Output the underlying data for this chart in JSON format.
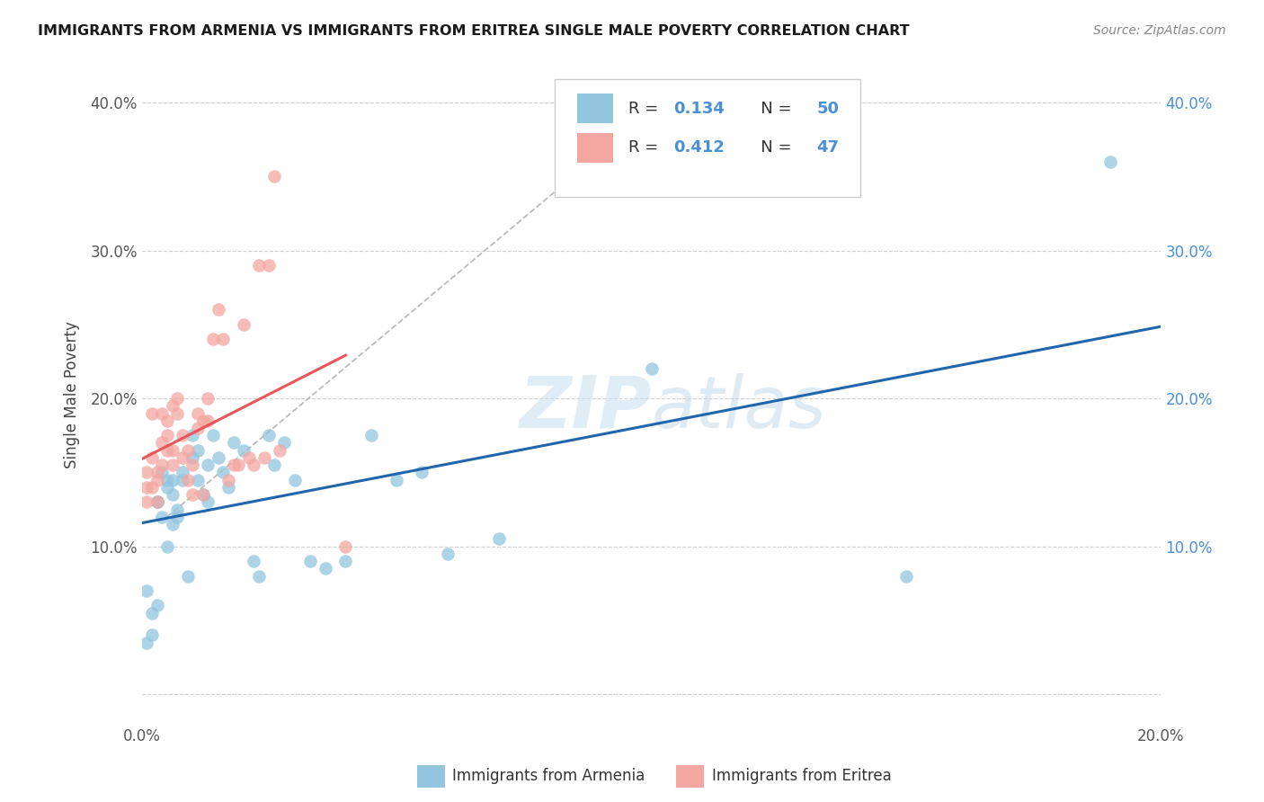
{
  "title": "IMMIGRANTS FROM ARMENIA VS IMMIGRANTS FROM ERITREA SINGLE MALE POVERTY CORRELATION CHART",
  "source": "Source: ZipAtlas.com",
  "ylabel": "Single Male Poverty",
  "xlabel_label_armenia": "Immigrants from Armenia",
  "xlabel_label_eritrea": "Immigrants from Eritrea",
  "x_min": 0.0,
  "x_max": 0.2,
  "y_min": -0.02,
  "y_max": 0.425,
  "x_ticks": [
    0.0,
    0.05,
    0.1,
    0.15,
    0.2
  ],
  "y_ticks": [
    0.0,
    0.1,
    0.2,
    0.3,
    0.4
  ],
  "armenia_color": "#92c5de",
  "eritrea_color": "#f4a6a0",
  "armenia_line_color": "#2166ac",
  "eritrea_line_color": "#e8555a",
  "watermark_color": "#d6e8f5",
  "legend_box_color": "#f0f0f0",
  "grid_color": "#d0d0d0",
  "tick_color": "#4a90d9",
  "armenia_x": [
    0.001,
    0.001,
    0.002,
    0.002,
    0.003,
    0.003,
    0.003,
    0.004,
    0.004,
    0.005,
    0.005,
    0.005,
    0.006,
    0.006,
    0.006,
    0.007,
    0.007,
    0.008,
    0.008,
    0.009,
    0.01,
    0.01,
    0.011,
    0.011,
    0.012,
    0.013,
    0.013,
    0.014,
    0.015,
    0.016,
    0.017,
    0.018,
    0.02,
    0.022,
    0.023,
    0.025,
    0.026,
    0.028,
    0.03,
    0.033,
    0.036,
    0.04,
    0.045,
    0.05,
    0.055,
    0.06,
    0.07,
    0.1,
    0.15,
    0.19
  ],
  "armenia_y": [
    0.035,
    0.07,
    0.055,
    0.04,
    0.13,
    0.13,
    0.06,
    0.15,
    0.12,
    0.145,
    0.14,
    0.1,
    0.145,
    0.135,
    0.115,
    0.125,
    0.12,
    0.15,
    0.145,
    0.08,
    0.175,
    0.16,
    0.165,
    0.145,
    0.135,
    0.13,
    0.155,
    0.175,
    0.16,
    0.15,
    0.14,
    0.17,
    0.165,
    0.09,
    0.08,
    0.175,
    0.155,
    0.17,
    0.145,
    0.09,
    0.085,
    0.09,
    0.175,
    0.145,
    0.15,
    0.095,
    0.105,
    0.22,
    0.08,
    0.36
  ],
  "eritrea_x": [
    0.001,
    0.001,
    0.001,
    0.002,
    0.002,
    0.002,
    0.003,
    0.003,
    0.003,
    0.004,
    0.004,
    0.004,
    0.005,
    0.005,
    0.005,
    0.006,
    0.006,
    0.006,
    0.007,
    0.007,
    0.008,
    0.008,
    0.009,
    0.009,
    0.01,
    0.01,
    0.011,
    0.011,
    0.012,
    0.012,
    0.013,
    0.013,
    0.014,
    0.015,
    0.016,
    0.017,
    0.018,
    0.019,
    0.02,
    0.021,
    0.022,
    0.023,
    0.024,
    0.025,
    0.026,
    0.027,
    0.04
  ],
  "eritrea_y": [
    0.14,
    0.15,
    0.13,
    0.19,
    0.14,
    0.16,
    0.145,
    0.15,
    0.13,
    0.19,
    0.17,
    0.155,
    0.185,
    0.175,
    0.165,
    0.195,
    0.165,
    0.155,
    0.2,
    0.19,
    0.16,
    0.175,
    0.145,
    0.165,
    0.155,
    0.135,
    0.18,
    0.19,
    0.185,
    0.135,
    0.2,
    0.185,
    0.24,
    0.26,
    0.24,
    0.145,
    0.155,
    0.155,
    0.25,
    0.16,
    0.155,
    0.29,
    0.16,
    0.29,
    0.35,
    0.165,
    0.1
  ],
  "armenia_R": "0.134",
  "armenia_N": "50",
  "eritrea_R": "0.412",
  "eritrea_N": "47"
}
